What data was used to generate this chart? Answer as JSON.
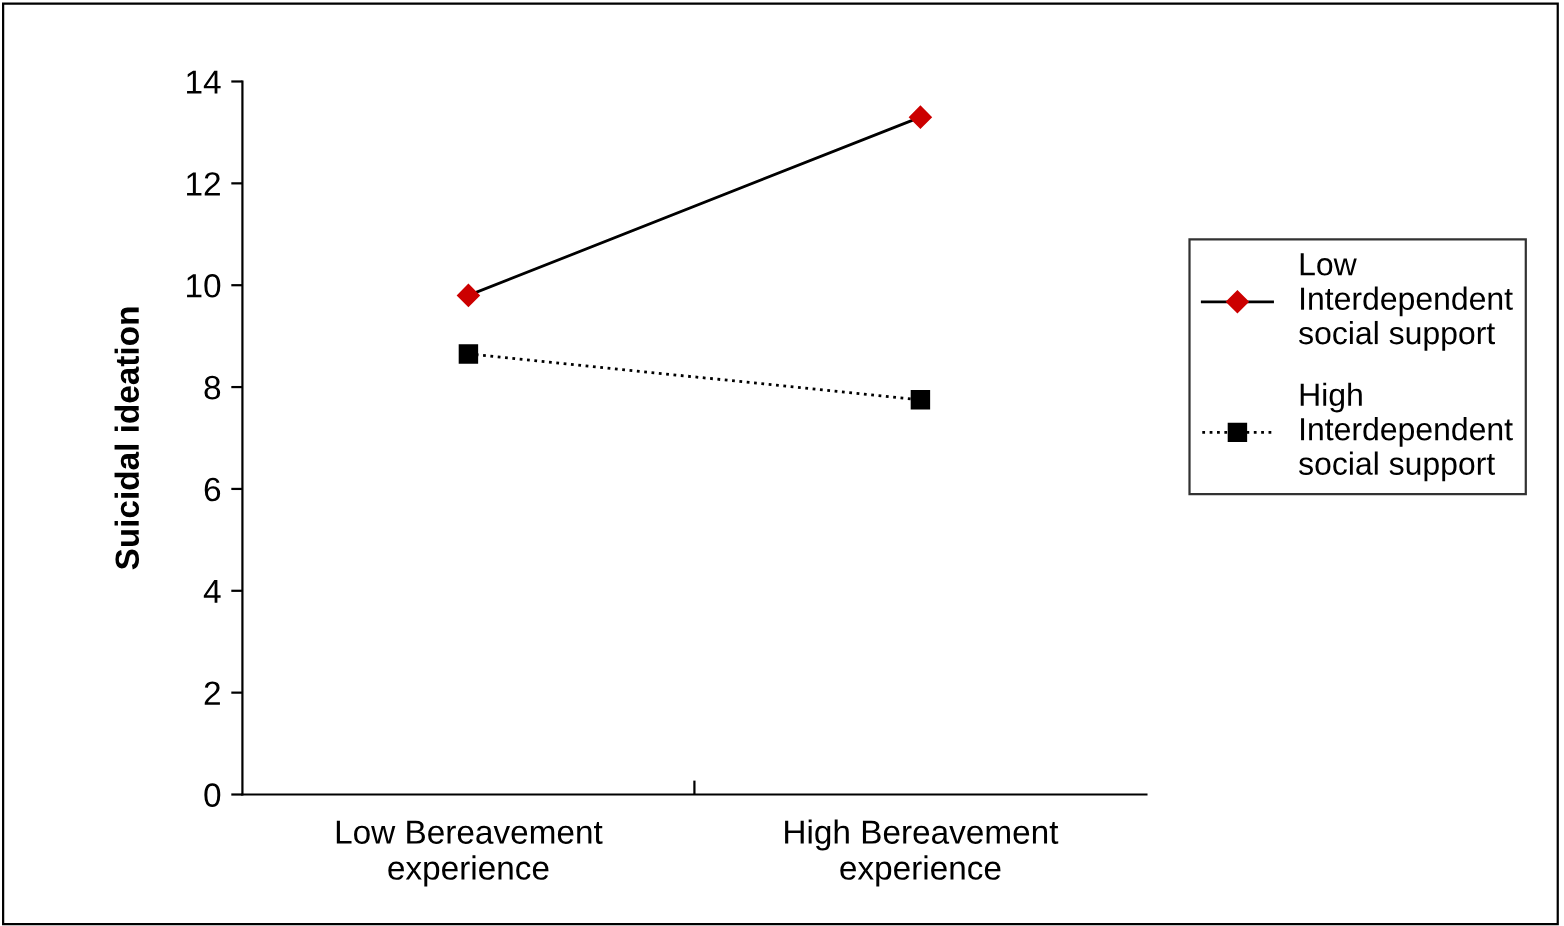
{
  "chart_data": {
    "type": "line",
    "ylabel": "Suicidal ideation",
    "categories": [
      "Low Bereavement\nexperience",
      "High Bereavement\nexperience"
    ],
    "series": [
      {
        "name": "Low\nInterdependent\nsocial support",
        "color": "#cc0000",
        "marker": "diamond",
        "line_style": "solid",
        "values": [
          9.8,
          13.3
        ]
      },
      {
        "name": "High\nInterdependent\nsocial support",
        "color": "#000000",
        "marker": "square",
        "line_style": "dotted",
        "values": [
          8.65,
          7.75
        ]
      }
    ],
    "ylim": [
      0,
      14
    ],
    "yticks": [
      0,
      2,
      4,
      6,
      8,
      10,
      12,
      14
    ],
    "grid": false,
    "legend": "right"
  }
}
